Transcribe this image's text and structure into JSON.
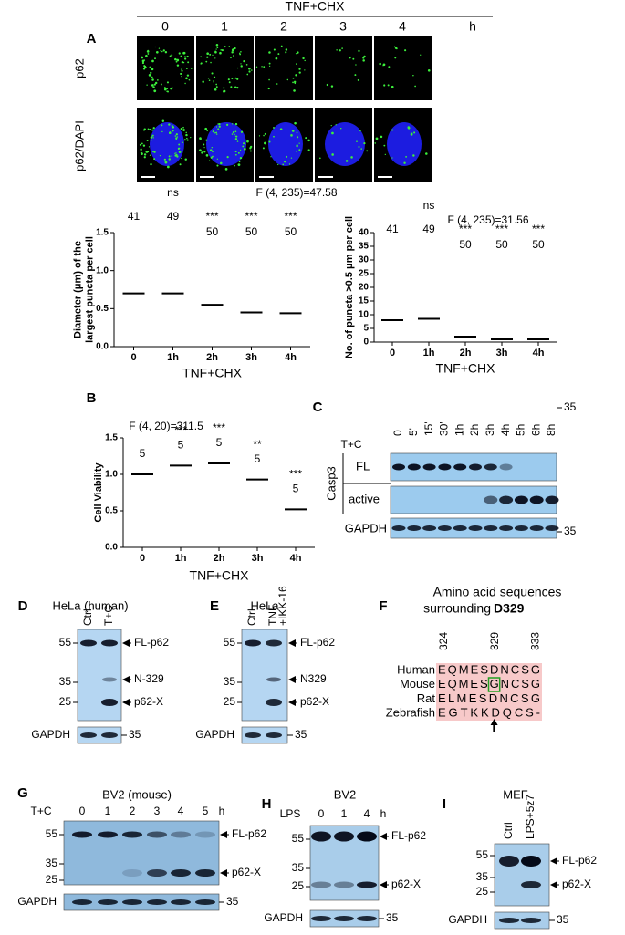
{
  "panel_labels": [
    "A",
    "B",
    "C",
    "D",
    "E",
    "F",
    "G",
    "H",
    "I"
  ],
  "panel_a": {
    "treatment": "TNF+CHX",
    "timepoints": [
      "0",
      "1",
      "2",
      "3",
      "4"
    ],
    "unit": "h",
    "rows": [
      "p62",
      "p62/DAPI"
    ]
  },
  "chart_data": [
    {
      "type": "strip",
      "ylabel": [
        "Diameter (μm) of the",
        "largest puncta per cell"
      ],
      "xlabel": "TNF+CHX",
      "stat": "F (4, 235)=47.58",
      "categories": [
        "0",
        "1h",
        "2h",
        "3h",
        "4h"
      ],
      "values": [
        0.7,
        0.7,
        0.55,
        0.45,
        0.44
      ],
      "color": "#000000",
      "n": [
        41,
        49,
        50,
        50,
        50
      ],
      "significance": [
        null,
        "ns",
        "***",
        "***",
        "***"
      ],
      "ylim": [
        0,
        1.5
      ],
      "yticks": [
        {
          "value": 0,
          "label": "0.0"
        },
        0.5,
        {
          "value": 1,
          "label": "1.0"
        },
        1.5
      ]
    },
    {
      "type": "strip",
      "ylabel": [
        "No. of puncta >0.5 μm per cell"
      ],
      "xlabel": "TNF+CHX",
      "stat": "F (4, 235)=31.56",
      "categories": [
        "0",
        "1h",
        "2h",
        "3h",
        "4h"
      ],
      "values": [
        8,
        8.5,
        2,
        1,
        1
      ],
      "color": "#000000",
      "n": [
        41,
        49,
        50,
        50,
        50
      ],
      "significance": [
        null,
        "ns",
        "***",
        "***",
        "***"
      ],
      "ylim": [
        0,
        40
      ],
      "yticks": [
        0,
        5,
        10,
        15,
        20,
        25,
        30,
        35,
        40
      ]
    },
    {
      "type": "strip",
      "ylabel": [
        "Cell Viability"
      ],
      "xlabel": "TNF+CHX",
      "stat": "F (4, 20)=311.5",
      "categories": [
        "0",
        "1h",
        "2h",
        "3h",
        "4h"
      ],
      "values": [
        1.0,
        1.12,
        1.15,
        0.93,
        0.52
      ],
      "color": "#000000",
      "n": [
        5,
        5,
        5,
        5,
        5
      ],
      "significance": [
        null,
        "***",
        "***",
        "**",
        "***"
      ],
      "ylim": [
        0,
        1.5
      ],
      "yticks": [
        {
          "value": 0,
          "label": "0.0"
        },
        0.5,
        {
          "value": 1,
          "label": "1.0"
        },
        1.5
      ]
    }
  ],
  "panel_c": {
    "treatment": "T+C",
    "lanes": [
      "0",
      "5'",
      "15'",
      "30'",
      "1h",
      "2h",
      "3h",
      "4h",
      "5h",
      "6h",
      "8h"
    ],
    "antibody": "Casp3",
    "forms": [
      "FL",
      "active"
    ],
    "loading": "GAPDH",
    "markers": [
      "35",
      "35"
    ]
  },
  "panel_d": {
    "title": "HeLa (human)",
    "lanes": [
      "Ctrl",
      "T+C"
    ],
    "markers": [
      "55",
      "35",
      "25"
    ],
    "bands": [
      "FL-p62",
      "N-329",
      "p62-X"
    ],
    "loading": "GAPDH",
    "loading_marker": "35"
  },
  "panel_e": {
    "title": "HeLa",
    "lanes": [
      "Ctrl",
      "TNF"
    ],
    "lane_note": "+IKK-16",
    "markers": [
      "55",
      "35",
      "25"
    ],
    "bands": [
      "FL-p62",
      "N329",
      "p62-X"
    ],
    "loading": "GAPDH",
    "loading_marker": "35"
  },
  "panel_f": {
    "title": "Amino acid sequences",
    "subtitle": "surrounding",
    "highlight": "D329",
    "positions": [
      "324",
      "329",
      "333"
    ],
    "species": [
      "Human",
      "Mouse",
      "Rat",
      "Zebrafish"
    ],
    "sequences": [
      "EQMESDNCSG",
      "EQMESGNCSG",
      "ELMESDNCSG",
      "EGTKKDQCS-"
    ]
  },
  "panel_g": {
    "title": "BV2 (mouse)",
    "treatment": "T+C",
    "lanes": [
      "0",
      "1",
      "2",
      "3",
      "4",
      "5"
    ],
    "unit": "h",
    "markers": [
      "55",
      "35",
      "25"
    ],
    "bands": [
      "FL-p62",
      "p62-X"
    ],
    "loading": "GAPDH",
    "loading_marker": "35"
  },
  "panel_h": {
    "title": "BV2",
    "treatment": "LPS",
    "lanes": [
      "0",
      "1",
      "4"
    ],
    "unit": "h",
    "markers": [
      "55",
      "35",
      "25"
    ],
    "bands": [
      "FL-p62",
      "p62-X"
    ],
    "loading": "GAPDH",
    "loading_marker": "35"
  },
  "panel_i": {
    "title": "MEF",
    "lanes": [
      "Ctrl",
      "LPS+5z7"
    ],
    "markers": [
      "55",
      "35",
      "25"
    ],
    "bands": [
      "FL-p62",
      "p62-X"
    ],
    "loading": "GAPDH",
    "loading_marker": "35"
  }
}
